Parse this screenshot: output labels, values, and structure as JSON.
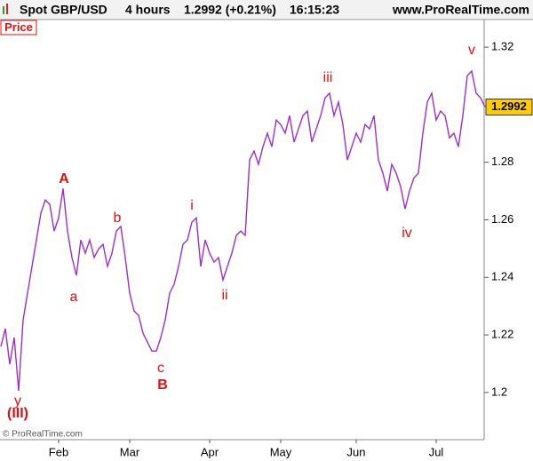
{
  "header": {
    "symbol": "Spot GBP/USD",
    "timeframe": "4 hours",
    "quote": "1.2992 (+0.21%)",
    "time": "16:15:23",
    "site": "www.ProRealTime.com"
  },
  "panel_label": "Price",
  "copyright": "© ProRealTime.com",
  "chart_data": {
    "type": "line",
    "categories": [
      null,
      null,
      null,
      null,
      null,
      null,
      null,
      null,
      null,
      null,
      null,
      null,
      null,
      "Feb",
      null,
      null,
      null,
      null,
      null,
      null,
      null,
      null,
      null,
      null,
      null,
      null,
      null,
      null,
      null,
      "Mar",
      null,
      null,
      null,
      null,
      null,
      null,
      null,
      null,
      null,
      null,
      null,
      null,
      null,
      null,
      null,
      null,
      null,
      "Apr",
      null,
      null,
      null,
      null,
      null,
      null,
      null,
      null,
      null,
      null,
      null,
      null,
      null,
      null,
      null,
      "May",
      null,
      null,
      null,
      null,
      null,
      null,
      null,
      null,
      null,
      null,
      null,
      null,
      null,
      null,
      null,
      null,
      "Jun",
      null,
      null,
      null,
      null,
      null,
      null,
      null,
      null,
      null,
      null,
      null,
      null,
      null,
      null,
      null,
      null,
      null,
      "Jul",
      null,
      null,
      null,
      null,
      null,
      null,
      null,
      null,
      null,
      null,
      null
    ],
    "series": [
      {
        "name": "Spot GBP/USD",
        "color": "#9a2fd0",
        "values": [
          1.216,
          1.2222,
          1.2098,
          1.2191,
          1.2006,
          1.2252,
          1.2345,
          1.2438,
          1.253,
          1.2623,
          1.2669,
          1.2654,
          1.2561,
          1.2607,
          1.2709,
          1.2561,
          1.2469,
          1.2407,
          1.253,
          1.2484,
          1.253,
          1.2469,
          1.2499,
          1.2515,
          1.2438,
          1.2484,
          1.2561,
          1.2577,
          1.2469,
          1.2345,
          1.2283,
          1.2268,
          1.2206,
          1.2175,
          1.2144,
          1.2144,
          1.2191,
          1.2252,
          1.2345,
          1.2376,
          1.2438,
          1.2515,
          1.253,
          1.2592,
          1.2607,
          1.2438,
          1.253,
          1.2484,
          1.2453,
          1.2469,
          1.2391,
          1.2438,
          1.2484,
          1.2546,
          1.2561,
          1.2546,
          1.2808,
          1.2839,
          1.2793,
          1.2854,
          1.2901,
          1.2854,
          1.2947,
          1.2931,
          1.2901,
          1.2962,
          1.287,
          1.2916,
          1.2962,
          1.2978,
          1.287,
          1.2916,
          1.2962,
          1.3024,
          1.304,
          1.2962,
          1.3009,
          1.2931,
          1.2808,
          1.2854,
          1.2901,
          1.287,
          1.2931,
          1.2916,
          1.2962,
          1.2808,
          1.2762,
          1.27,
          1.2793,
          1.2762,
          1.2715,
          1.2638,
          1.27,
          1.2746,
          1.2762,
          1.2901,
          1.3009,
          1.304,
          1.2947,
          1.2978,
          1.2962,
          1.2885,
          1.2901,
          1.2854,
          1.2962,
          1.3101,
          1.3117,
          1.304,
          1.3024,
          1.2992
        ],
        "last_value_label": "1.2992"
      }
    ],
    "ylim": [
      1.1836,
      1.3296
    ],
    "yticks": [
      1.2,
      1.22,
      1.24,
      1.26,
      1.28,
      1.32
    ],
    "grid": false,
    "annotations": [
      "(III)",
      "y",
      "A",
      "a",
      "b",
      "c",
      "B",
      "i",
      "ii",
      "iii",
      "iv",
      "v"
    ]
  }
}
